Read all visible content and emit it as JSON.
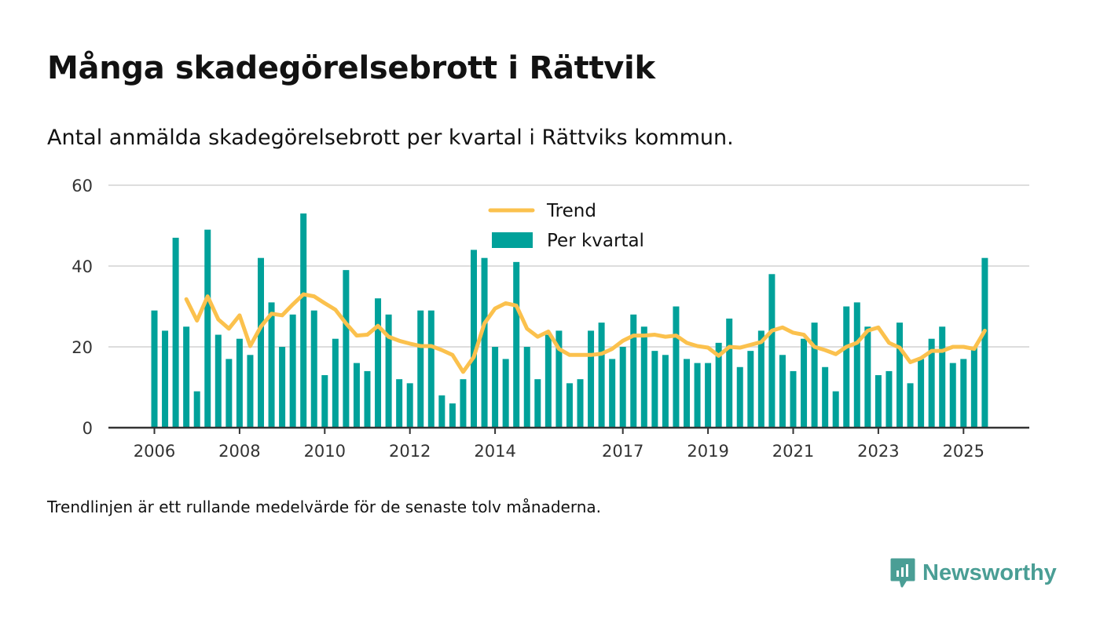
{
  "title": "Många skadegörelsebrott i Rättvik",
  "subtitle": "Antal anmälda skadegörelsebrott per kvartal i Rättviks kommun.",
  "footnote": "Trendlinjen är ett rullande medelvärde för de senaste tolv månaderna.",
  "brand": "Newsworthy",
  "colors": {
    "bar": "#00a19a",
    "trend": "#fbc14d",
    "grid": "#dddddd",
    "axis": "#333333"
  },
  "chart_data": {
    "type": "bar",
    "title": "Många skadegörelsebrott i Rättvik",
    "xlabel": "",
    "ylabel": "",
    "ylim": [
      0,
      60
    ],
    "yticks": [
      0,
      20,
      40,
      60
    ],
    "xticks": [
      "2006",
      "2008",
      "2010",
      "2012",
      "2014",
      "2017",
      "2019",
      "2021",
      "2023",
      "2025"
    ],
    "legend": {
      "position": "top-center",
      "entries": [
        "Trend",
        "Per kvartal"
      ]
    },
    "series": [
      {
        "name": "Per kvartal",
        "type": "bar",
        "start": "2006 Q1",
        "values": [
          29,
          24,
          47,
          25,
          9,
          49,
          23,
          17,
          22,
          18,
          42,
          31,
          20,
          28,
          53,
          29,
          13,
          22,
          39,
          16,
          14,
          32,
          28,
          12,
          11,
          29,
          29,
          8,
          6,
          12,
          44,
          42,
          20,
          17,
          41,
          20,
          12,
          23,
          24,
          11,
          12,
          24,
          26,
          17,
          20,
          28,
          25,
          19,
          18,
          30,
          17,
          16,
          16,
          21,
          27,
          15,
          19,
          24,
          38,
          18,
          14,
          22,
          26,
          15,
          9,
          30,
          31,
          25,
          13,
          14,
          26,
          11,
          17,
          22,
          25,
          16,
          17,
          20,
          42
        ]
      },
      {
        "name": "Trend",
        "type": "line",
        "start": "2006 Q4",
        "values": [
          31.8,
          26.5,
          32.5,
          26.8,
          24.5,
          27.8,
          20.2,
          25.0,
          28.2,
          27.8,
          30.5,
          33.0,
          32.5,
          30.8,
          29.2,
          25.8,
          22.8,
          23.0,
          25.2,
          22.5,
          21.5,
          20.8,
          20.2,
          20.2,
          19.2,
          18.0,
          13.8,
          17.5,
          25.8,
          29.5,
          30.8,
          30.2,
          24.5,
          22.5,
          23.8,
          19.5,
          18.0,
          18.0,
          18.0,
          18.3,
          19.5,
          21.5,
          22.8,
          22.8,
          23.0,
          22.5,
          22.8,
          21.0,
          20.2,
          19.8,
          17.8,
          20.0,
          19.8,
          20.5,
          21.2,
          24.0,
          24.8,
          23.5,
          23.0,
          20.0,
          19.2,
          18.2,
          20.0,
          21.0,
          24.0,
          24.8,
          21.0,
          19.8,
          16.2,
          17.2,
          19.0,
          19.0,
          20.0,
          20.0,
          19.5,
          24.0
        ]
      }
    ]
  }
}
